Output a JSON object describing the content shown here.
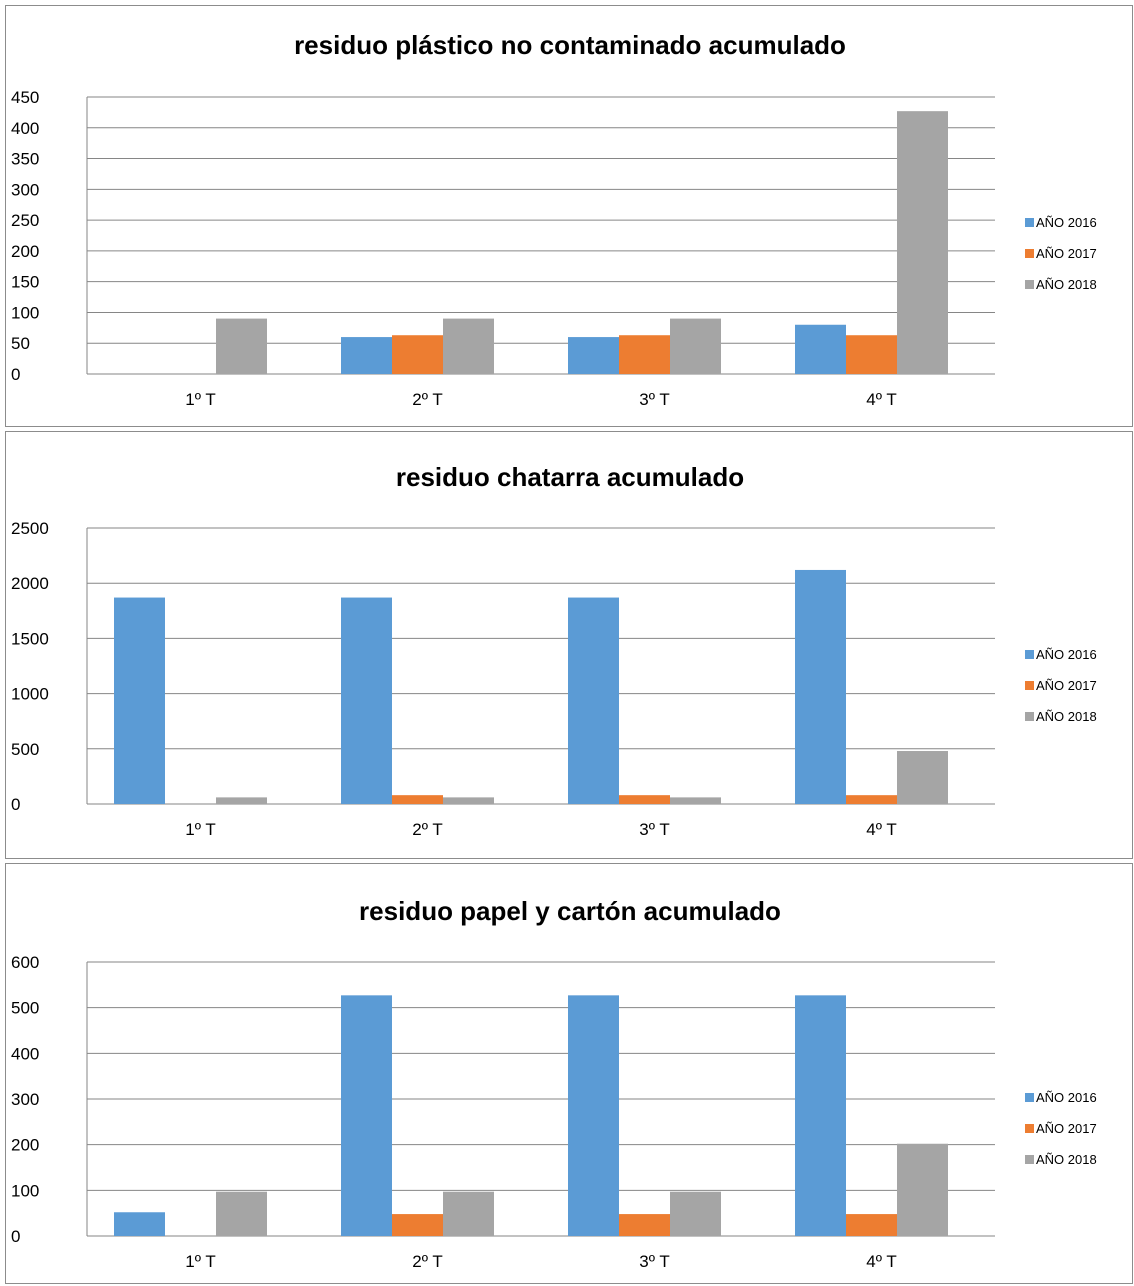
{
  "chart_data": [
    {
      "type": "bar",
      "title": "residuo plástico no contaminado acumulado",
      "categories": [
        "1º T",
        "2º T",
        "3º T",
        "4º T"
      ],
      "yticks": [
        "0",
        "50",
        "100",
        "150",
        "200",
        "250",
        "300",
        "350",
        "400",
        "450"
      ],
      "ylim": [
        0,
        450
      ],
      "grid": true,
      "legend_position": "right",
      "series": [
        {
          "name": "AÑO 2016",
          "color": "#5b9bd5",
          "values": [
            0,
            60,
            60,
            80
          ]
        },
        {
          "name": "AÑO 2017",
          "color": "#ed7d31",
          "values": [
            0,
            63,
            63,
            63
          ]
        },
        {
          "name": "AÑO 2018",
          "color": "#a5a5a5",
          "values": [
            90,
            90,
            90,
            427
          ]
        }
      ]
    },
    {
      "type": "bar",
      "title": "residuo chatarra acumulado",
      "categories": [
        "1º T",
        "2º T",
        "3º T",
        "4º T"
      ],
      "yticks": [
        "0",
        "500",
        "1000",
        "1500",
        "2000",
        "2500"
      ],
      "ylim": [
        0,
        2500
      ],
      "grid": true,
      "legend_position": "right",
      "series": [
        {
          "name": "AÑO 2016",
          "color": "#5b9bd5",
          "values": [
            1870,
            1870,
            1870,
            2120
          ]
        },
        {
          "name": "AÑO 2017",
          "color": "#ed7d31",
          "values": [
            0,
            80,
            80,
            80
          ]
        },
        {
          "name": "AÑO 2018",
          "color": "#a5a5a5",
          "values": [
            60,
            60,
            60,
            480
          ]
        }
      ]
    },
    {
      "type": "bar",
      "title": "residuo papel y cartón acumulado",
      "categories": [
        "1º T",
        "2º T",
        "3º T",
        "4º T"
      ],
      "yticks": [
        "0",
        "100",
        "200",
        "300",
        "400",
        "500",
        "600"
      ],
      "ylim": [
        0,
        600
      ],
      "grid": true,
      "legend_position": "right",
      "series": [
        {
          "name": "AÑO 2016",
          "color": "#5b9bd5",
          "values": [
            52,
            527,
            527,
            527
          ]
        },
        {
          "name": "AÑO 2017",
          "color": "#ed7d31",
          "values": [
            0,
            48,
            48,
            48
          ]
        },
        {
          "name": "AÑO 2018",
          "color": "#a5a5a5",
          "values": [
            97,
            97,
            97,
            202
          ]
        }
      ]
    }
  ]
}
